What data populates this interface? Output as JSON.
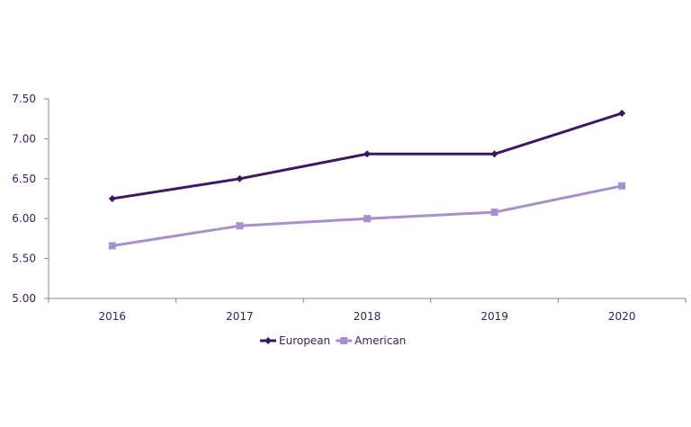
{
  "chart_data": {
    "type": "line",
    "title": "",
    "xlabel": "",
    "ylabel": "",
    "categories": [
      "2016",
      "2017",
      "2018",
      "2019",
      "2020"
    ],
    "ylim": [
      5.0,
      7.5
    ],
    "yticks": [
      "5.00",
      "5.50",
      "6.00",
      "6.50",
      "7.00",
      "7.50"
    ],
    "grid": false,
    "legend": "bottom",
    "series": [
      {
        "name": "European",
        "color": "#3d1766",
        "marker": "diamond",
        "values": [
          6.25,
          6.5,
          6.81,
          6.81,
          7.32
        ]
      },
      {
        "name": "American",
        "color": "#a890cc",
        "marker": "square",
        "values": [
          5.66,
          5.91,
          6.0,
          6.08,
          6.41
        ]
      }
    ]
  }
}
